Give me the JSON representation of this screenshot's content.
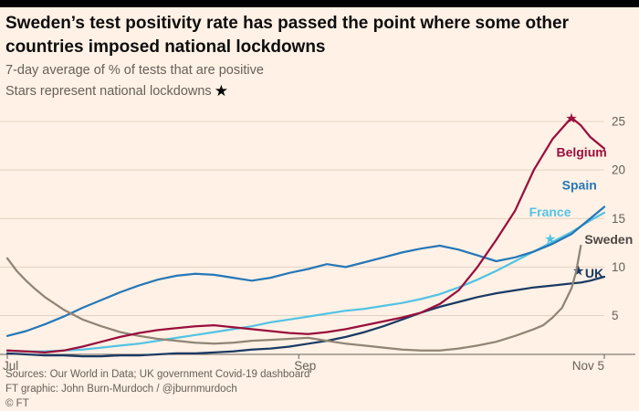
{
  "header": {
    "title_line1": "Sweden’s test positivity rate has passed the point where some other",
    "title_line2": "countries imposed national lockdowns",
    "subtitle": "7-day average of % of tests that are positive",
    "legend_note": "Stars represent national lockdowns",
    "star_glyph": "★"
  },
  "footer": {
    "sources": "Sources: Our World in Data; UK government Covid-19 dashboard",
    "credit": "FT graphic: John Burn-Murdoch / @jburnmurdoch",
    "copyright": "© FT"
  },
  "colors": {
    "background": "#FFF1E5",
    "top_bar": "#000000",
    "title": "#0D0D0D",
    "subtitle": "#66605A",
    "gridline": "#E2D2C4",
    "axis": "#66605A",
    "tick_label": "#66605A"
  },
  "chart_data": {
    "type": "line",
    "x_unit": "days since Jul 1 (2020), Jul → Nov 5",
    "ylim": [
      1,
      25
    ],
    "y_ticks": [
      5,
      10,
      15,
      20,
      25
    ],
    "x_ticks": [
      {
        "day": 0,
        "label": "Jul"
      },
      {
        "day": 62,
        "label": "Sep"
      },
      {
        "day": 127,
        "label": "Nov 5"
      }
    ],
    "grid": true,
    "legend_position": "inline-labels",
    "series": [
      {
        "name": "France",
        "color": "#53C3E4",
        "label_at": [
          111,
          15.2
        ],
        "star_at": [
          115.5,
          12.9
        ],
        "points": [
          [
            0,
            1.4
          ],
          [
            4,
            1.3
          ],
          [
            8,
            1.3
          ],
          [
            12,
            1.4
          ],
          [
            16,
            1.5
          ],
          [
            20,
            1.7
          ],
          [
            24,
            1.9
          ],
          [
            28,
            2.1
          ],
          [
            32,
            2.4
          ],
          [
            36,
            2.7
          ],
          [
            40,
            3.0
          ],
          [
            44,
            3.3
          ],
          [
            48,
            3.6
          ],
          [
            52,
            3.9
          ],
          [
            56,
            4.3
          ],
          [
            60,
            4.6
          ],
          [
            64,
            4.9
          ],
          [
            68,
            5.2
          ],
          [
            72,
            5.5
          ],
          [
            76,
            5.7
          ],
          [
            80,
            6.0
          ],
          [
            84,
            6.3
          ],
          [
            88,
            6.7
          ],
          [
            92,
            7.2
          ],
          [
            96,
            7.9
          ],
          [
            100,
            8.7
          ],
          [
            104,
            9.6
          ],
          [
            108,
            10.6
          ],
          [
            112,
            11.6
          ],
          [
            116,
            12.6
          ],
          [
            120,
            13.6
          ],
          [
            122,
            14.2
          ],
          [
            124,
            14.8
          ],
          [
            127,
            15.6
          ]
        ]
      },
      {
        "name": "Spain",
        "color": "#2577B8",
        "label_at": [
          118,
          18.0
        ],
        "star_at": null,
        "points": [
          [
            0,
            2.9
          ],
          [
            4,
            3.4
          ],
          [
            8,
            4.1
          ],
          [
            12,
            4.9
          ],
          [
            16,
            5.8
          ],
          [
            20,
            6.6
          ],
          [
            24,
            7.4
          ],
          [
            28,
            8.1
          ],
          [
            32,
            8.7
          ],
          [
            36,
            9.1
          ],
          [
            40,
            9.3
          ],
          [
            44,
            9.2
          ],
          [
            48,
            8.9
          ],
          [
            52,
            8.6
          ],
          [
            56,
            8.9
          ],
          [
            60,
            9.4
          ],
          [
            64,
            9.8
          ],
          [
            68,
            10.3
          ],
          [
            72,
            10.0
          ],
          [
            76,
            10.5
          ],
          [
            80,
            11.0
          ],
          [
            84,
            11.5
          ],
          [
            88,
            11.9
          ],
          [
            92,
            12.2
          ],
          [
            96,
            11.8
          ],
          [
            100,
            11.2
          ],
          [
            104,
            10.6
          ],
          [
            108,
            11.0
          ],
          [
            112,
            11.6
          ],
          [
            116,
            12.4
          ],
          [
            120,
            13.4
          ],
          [
            122,
            14.2
          ],
          [
            124,
            15.0
          ],
          [
            127,
            16.2
          ]
        ]
      },
      {
        "name": "UK",
        "color": "#1A3A64",
        "label_at": [
          122.9,
          8.9
        ],
        "star_at": [
          121.5,
          9.6
        ],
        "points": [
          [
            0,
            1.1
          ],
          [
            4,
            1.0
          ],
          [
            8,
            0.9
          ],
          [
            12,
            0.9
          ],
          [
            16,
            0.8
          ],
          [
            20,
            0.8
          ],
          [
            24,
            0.9
          ],
          [
            28,
            0.9
          ],
          [
            32,
            1.0
          ],
          [
            36,
            1.1
          ],
          [
            40,
            1.1
          ],
          [
            44,
            1.2
          ],
          [
            48,
            1.3
          ],
          [
            52,
            1.5
          ],
          [
            56,
            1.6
          ],
          [
            60,
            1.8
          ],
          [
            64,
            2.1
          ],
          [
            68,
            2.4
          ],
          [
            72,
            2.8
          ],
          [
            76,
            3.3
          ],
          [
            80,
            3.9
          ],
          [
            84,
            4.6
          ],
          [
            88,
            5.3
          ],
          [
            92,
            5.9
          ],
          [
            96,
            6.4
          ],
          [
            100,
            6.9
          ],
          [
            104,
            7.3
          ],
          [
            108,
            7.6
          ],
          [
            112,
            7.9
          ],
          [
            116,
            8.1
          ],
          [
            120,
            8.3
          ],
          [
            122,
            8.4
          ],
          [
            124,
            8.6
          ],
          [
            127,
            9.0
          ]
        ]
      },
      {
        "name": "Sweden",
        "color": "#8F8575",
        "label_color": "#4D4845",
        "label_at": [
          122.8,
          12.4
        ],
        "star_at": null,
        "points": [
          [
            0,
            10.9
          ],
          [
            2,
            9.6
          ],
          [
            4,
            8.6
          ],
          [
            6,
            7.7
          ],
          [
            8,
            6.9
          ],
          [
            12,
            5.6
          ],
          [
            16,
            4.6
          ],
          [
            20,
            3.9
          ],
          [
            24,
            3.3
          ],
          [
            28,
            2.9
          ],
          [
            32,
            2.6
          ],
          [
            36,
            2.4
          ],
          [
            40,
            2.2
          ],
          [
            44,
            2.1
          ],
          [
            48,
            2.2
          ],
          [
            52,
            2.4
          ],
          [
            56,
            2.5
          ],
          [
            60,
            2.6
          ],
          [
            64,
            2.7
          ],
          [
            68,
            2.4
          ],
          [
            72,
            2.1
          ],
          [
            76,
            1.9
          ],
          [
            80,
            1.7
          ],
          [
            84,
            1.5
          ],
          [
            88,
            1.4
          ],
          [
            92,
            1.4
          ],
          [
            96,
            1.6
          ],
          [
            100,
            1.9
          ],
          [
            104,
            2.3
          ],
          [
            108,
            2.9
          ],
          [
            112,
            3.6
          ],
          [
            114,
            4.0
          ],
          [
            116,
            4.8
          ],
          [
            118,
            5.8
          ],
          [
            120,
            7.8
          ],
          [
            121,
            9.5
          ],
          [
            122,
            12.2
          ]
        ]
      },
      {
        "name": "Belgium",
        "color": "#990F3D",
        "label_at": [
          116.8,
          21.4
        ],
        "star_at": [
          120,
          25.35
        ],
        "points": [
          [
            0,
            1.4
          ],
          [
            4,
            1.3
          ],
          [
            8,
            1.2
          ],
          [
            12,
            1.4
          ],
          [
            16,
            1.8
          ],
          [
            20,
            2.3
          ],
          [
            24,
            2.8
          ],
          [
            28,
            3.2
          ],
          [
            32,
            3.5
          ],
          [
            36,
            3.7
          ],
          [
            40,
            3.9
          ],
          [
            44,
            4.0
          ],
          [
            48,
            3.8
          ],
          [
            52,
            3.6
          ],
          [
            56,
            3.4
          ],
          [
            60,
            3.2
          ],
          [
            64,
            3.1
          ],
          [
            68,
            3.3
          ],
          [
            72,
            3.6
          ],
          [
            76,
            4.0
          ],
          [
            80,
            4.4
          ],
          [
            84,
            4.8
          ],
          [
            88,
            5.3
          ],
          [
            92,
            6.2
          ],
          [
            96,
            7.6
          ],
          [
            100,
            10.0
          ],
          [
            104,
            12.8
          ],
          [
            108,
            15.8
          ],
          [
            112,
            20.0
          ],
          [
            116,
            23.2
          ],
          [
            120,
            25.4
          ],
          [
            122,
            24.6
          ],
          [
            124,
            23.4
          ],
          [
            127,
            22.2
          ]
        ]
      }
    ]
  }
}
